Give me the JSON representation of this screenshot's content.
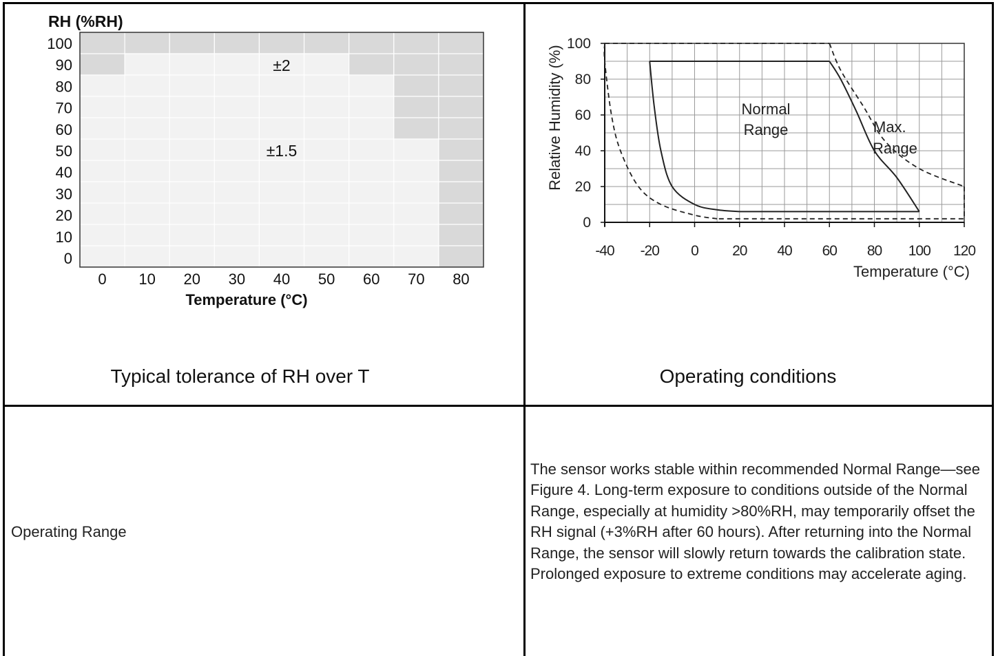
{
  "tolerance_chart": {
    "caption": "Typical tolerance of RH over T",
    "ylabel": "RH (%RH)",
    "xlabel": "Temperature (°C)",
    "zone_labels": [
      "±2",
      "±1.5"
    ],
    "colors": {
      "high_tolerance": "#d9d9d9",
      "low_tolerance": "#f2f2f2",
      "grid": "#ffffff"
    }
  },
  "operating_chart": {
    "caption": "Operating conditions",
    "ylabel": "Relative Humidity (%)",
    "xlabel": "Temperature (°C)",
    "normal_label_1": "Normal",
    "normal_label_2": "Range",
    "max_label_1": "Max.",
    "max_label_2": "Range"
  },
  "table": {
    "row_label": "Operating Range",
    "description": "The sensor works stable within recommended Normal Range—see Figure 4. Long-term exposure to conditions outside of the Normal Range, especially at humidity >80%RH, may temporarily offset the RH signal (+3%RH after 60 hours). After returning into the Normal Range, the sensor will slowly return towards the calibration state. Prolonged exposure to extreme conditions may accelerate aging."
  },
  "chart_data": [
    {
      "type": "heatmap",
      "title": "Typical tolerance of RH over T",
      "xlabel": "Temperature (°C)",
      "ylabel": "RH (%RH)",
      "x": [
        0,
        10,
        20,
        30,
        40,
        50,
        60,
        70,
        80
      ],
      "y": [
        0,
        10,
        20,
        30,
        40,
        50,
        60,
        70,
        80,
        90,
        100
      ],
      "values_by_rh_row_top_to_bottom": [
        {
          "rh": 90,
          "tolerance": [
            2,
            2,
            2,
            2,
            2,
            2,
            2,
            2,
            2
          ]
        },
        {
          "rh": 80,
          "tolerance": [
            2,
            1.5,
            1.5,
            1.5,
            1.5,
            1.5,
            2,
            2,
            2
          ]
        },
        {
          "rh": 70,
          "tolerance": [
            1.5,
            1.5,
            1.5,
            1.5,
            1.5,
            1.5,
            1.5,
            2,
            2
          ]
        },
        {
          "rh": 60,
          "tolerance": [
            1.5,
            1.5,
            1.5,
            1.5,
            1.5,
            1.5,
            1.5,
            2,
            2
          ]
        },
        {
          "rh": 50,
          "tolerance": [
            1.5,
            1.5,
            1.5,
            1.5,
            1.5,
            1.5,
            1.5,
            2,
            2
          ]
        },
        {
          "rh": 40,
          "tolerance": [
            1.5,
            1.5,
            1.5,
            1.5,
            1.5,
            1.5,
            1.5,
            1.5,
            2
          ]
        },
        {
          "rh": 30,
          "tolerance": [
            1.5,
            1.5,
            1.5,
            1.5,
            1.5,
            1.5,
            1.5,
            1.5,
            2
          ]
        },
        {
          "rh": 20,
          "tolerance": [
            1.5,
            1.5,
            1.5,
            1.5,
            1.5,
            1.5,
            1.5,
            1.5,
            2
          ]
        },
        {
          "rh": 10,
          "tolerance": [
            1.5,
            1.5,
            1.5,
            1.5,
            1.5,
            1.5,
            1.5,
            1.5,
            2
          ]
        },
        {
          "rh": 0,
          "tolerance": [
            1.5,
            1.5,
            1.5,
            1.5,
            1.5,
            1.5,
            1.5,
            1.5,
            2
          ]
        }
      ],
      "annotations": [
        "±2",
        "±1.5"
      ]
    },
    {
      "type": "line",
      "title": "Operating conditions",
      "xlabel": "Temperature (°C)",
      "ylabel": "Relative Humidity (%)",
      "xlim": [
        -40,
        120
      ],
      "ylim": [
        0,
        100
      ],
      "x_ticks": [
        -40,
        -20,
        0,
        20,
        40,
        60,
        80,
        100,
        120
      ],
      "y_ticks": [
        0,
        20,
        40,
        60,
        80,
        100
      ],
      "grid": true,
      "series": [
        {
          "name": "Normal Range",
          "style": "solid",
          "points": [
            [
              -20,
              90
            ],
            [
              60,
              90
            ],
            [
              65,
              80
            ],
            [
              72,
              62
            ],
            [
              80,
              40
            ],
            [
              90,
              25
            ],
            [
              100,
              6
            ],
            [
              20,
              6
            ],
            [
              10,
              7
            ],
            [
              0,
              10
            ],
            [
              -10,
              20
            ],
            [
              -15,
              40
            ],
            [
              -18,
              65
            ],
            [
              -20,
              90
            ]
          ]
        },
        {
          "name": "Max. Range",
          "style": "dashed",
          "points": [
            [
              -40,
              100
            ],
            [
              60,
              100
            ],
            [
              65,
              85
            ],
            [
              75,
              65
            ],
            [
              85,
              45
            ],
            [
              100,
              30
            ],
            [
              120,
              20
            ],
            [
              120,
              2
            ],
            [
              10,
              2
            ],
            [
              0,
              4
            ],
            [
              -15,
              10
            ],
            [
              -25,
              20
            ],
            [
              -33,
              40
            ],
            [
              -37,
              60
            ],
            [
              -40,
              90
            ],
            [
              -40,
              100
            ]
          ]
        }
      ]
    }
  ]
}
